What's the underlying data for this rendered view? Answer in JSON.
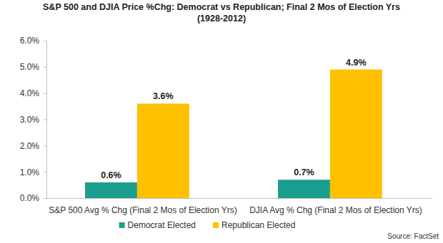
{
  "chart_data": {
    "type": "bar",
    "title": [
      "S&P 500 and DJIA Price %Chg: Democrat vs Republican; Final 2 Mos of Election Yrs",
      "(1928-2012)"
    ],
    "categories": [
      "S&P 500 Avg % Chg (Final 2 Mos of Election Yrs)",
      "DJIA Avg % Chg (Final 2 Mos of Election Yrs)"
    ],
    "series": [
      {
        "name": "Democrat Elected",
        "color": "#1b9e8e",
        "values": [
          0.6,
          0.7
        ],
        "value_labels": [
          "0.6%",
          "0.7%"
        ]
      },
      {
        "name": "Republican Elected",
        "color": "#ffc000",
        "values": [
          3.6,
          4.9
        ],
        "value_labels": [
          "3.6%",
          "4.9%"
        ]
      }
    ],
    "ylim": [
      0,
      6
    ],
    "yticks": [
      {
        "value": 0,
        "label": "0.0%"
      },
      {
        "value": 1,
        "label": "1.0%"
      },
      {
        "value": 2,
        "label": "2.0%"
      },
      {
        "value": 3,
        "label": "3.0%"
      },
      {
        "value": 4,
        "label": "4.0%"
      },
      {
        "value": 5,
        "label": "5.0%"
      },
      {
        "value": 6,
        "label": "6.0%"
      }
    ],
    "grid": false,
    "data_labels": true,
    "legend": "bottom",
    "annotations": [
      "Source: FactSet"
    ]
  }
}
